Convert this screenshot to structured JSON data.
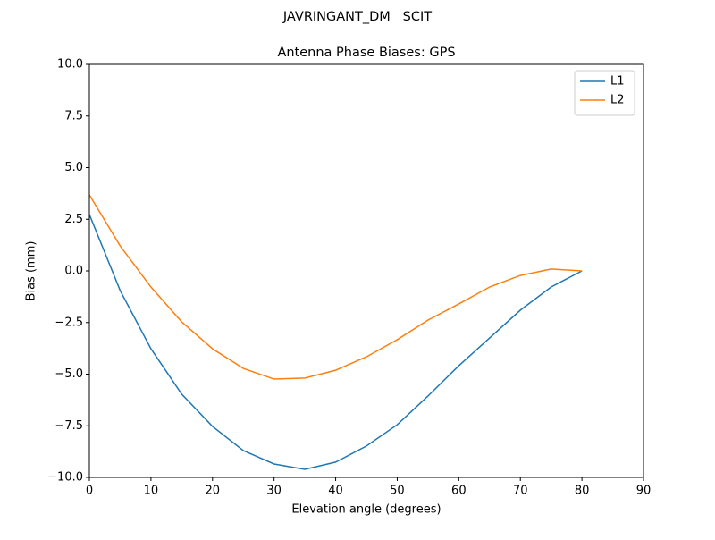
{
  "chart_data": {
    "type": "line",
    "suptitle": "JAVRINGANT_DM   SCIT",
    "title": "Antenna Phase Biases: GPS",
    "xlabel": "Elevation angle (degrees)",
    "ylabel": "Bias (mm)",
    "x": [
      0,
      5,
      10,
      15,
      20,
      25,
      30,
      35,
      40,
      45,
      50,
      55,
      60,
      65,
      70,
      75,
      80
    ],
    "series": [
      {
        "name": "L1",
        "color": "#1f77b4",
        "values": [
          2.73,
          -0.95,
          -3.77,
          -5.97,
          -7.53,
          -8.7,
          -9.35,
          -9.61,
          -9.26,
          -8.48,
          -7.45,
          -6.06,
          -4.59,
          -3.25,
          -1.9,
          -0.78,
          0.0
        ]
      },
      {
        "name": "L2",
        "color": "#ff7f0e",
        "values": [
          3.68,
          1.21,
          -0.78,
          -2.47,
          -3.77,
          -4.72,
          -5.24,
          -5.19,
          -4.81,
          -4.16,
          -3.33,
          -2.38,
          -1.6,
          -0.78,
          -0.22,
          0.09,
          0.0
        ]
      }
    ],
    "xlim": [
      0,
      90
    ],
    "ylim": [
      -10,
      10
    ],
    "xticks": [
      0,
      10,
      20,
      30,
      40,
      50,
      60,
      70,
      80,
      90
    ],
    "yticks": [
      {
        "value": -10,
        "label": "−10.0"
      },
      {
        "value": -7.5,
        "label": "−7.5"
      },
      {
        "value": -5,
        "label": "−5.0"
      },
      {
        "value": -2.5,
        "label": "−2.5"
      },
      {
        "value": 0,
        "label": "0.0"
      },
      {
        "value": 2.5,
        "label": "2.5"
      },
      {
        "value": 5,
        "label": "5.0"
      },
      7.5,
      {
        "value": 10,
        "label": "10.0"
      }
    ],
    "legend": "upper right",
    "grid": false
  }
}
